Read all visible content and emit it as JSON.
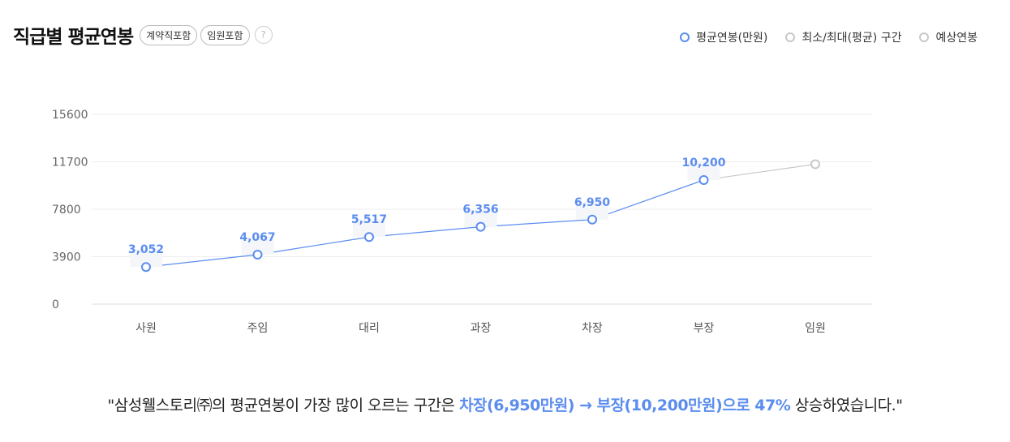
{
  "header": {
    "title": "직급별 평균연봉",
    "tags": [
      "계약직포함",
      "임원포함"
    ],
    "help_icon": "?"
  },
  "legend": [
    {
      "label": "평균연봉(만원)",
      "color": "#5b8def"
    },
    {
      "label": "최소/최대(평균) 구간",
      "color": "#c8c8c8"
    },
    {
      "label": "예상연봉",
      "color": "#c8c8c8"
    }
  ],
  "chart_data": {
    "type": "line",
    "categories": [
      "사원",
      "주임",
      "대리",
      "과장",
      "차장",
      "부장",
      "임원"
    ],
    "series": [
      {
        "name": "평균연봉(만원)",
        "values": [
          3052,
          4067,
          5517,
          6356,
          6950,
          10200,
          null
        ],
        "labels": [
          "3,052",
          "4,067",
          "5,517",
          "6,356",
          "6,950",
          "10,200",
          ""
        ],
        "color": "#5b8def"
      },
      {
        "name": "예상연봉",
        "values": [
          null,
          null,
          null,
          null,
          null,
          10200,
          11500
        ],
        "color": "#c8c8c8"
      }
    ],
    "yticks": [
      0,
      3900,
      7800,
      11700,
      15600
    ],
    "ylim": [
      0,
      15600
    ],
    "grid": true
  },
  "summary": {
    "prefix": "\"삼성웰스토리㈜의 평균연봉이 가장 많이 오르는 구간은 ",
    "highlight1": "차장(6,950만원) → 부장(10,200만원)",
    "middle": "으로 ",
    "highlight2": "47%",
    "suffix": " 상승하였습니다.\""
  }
}
